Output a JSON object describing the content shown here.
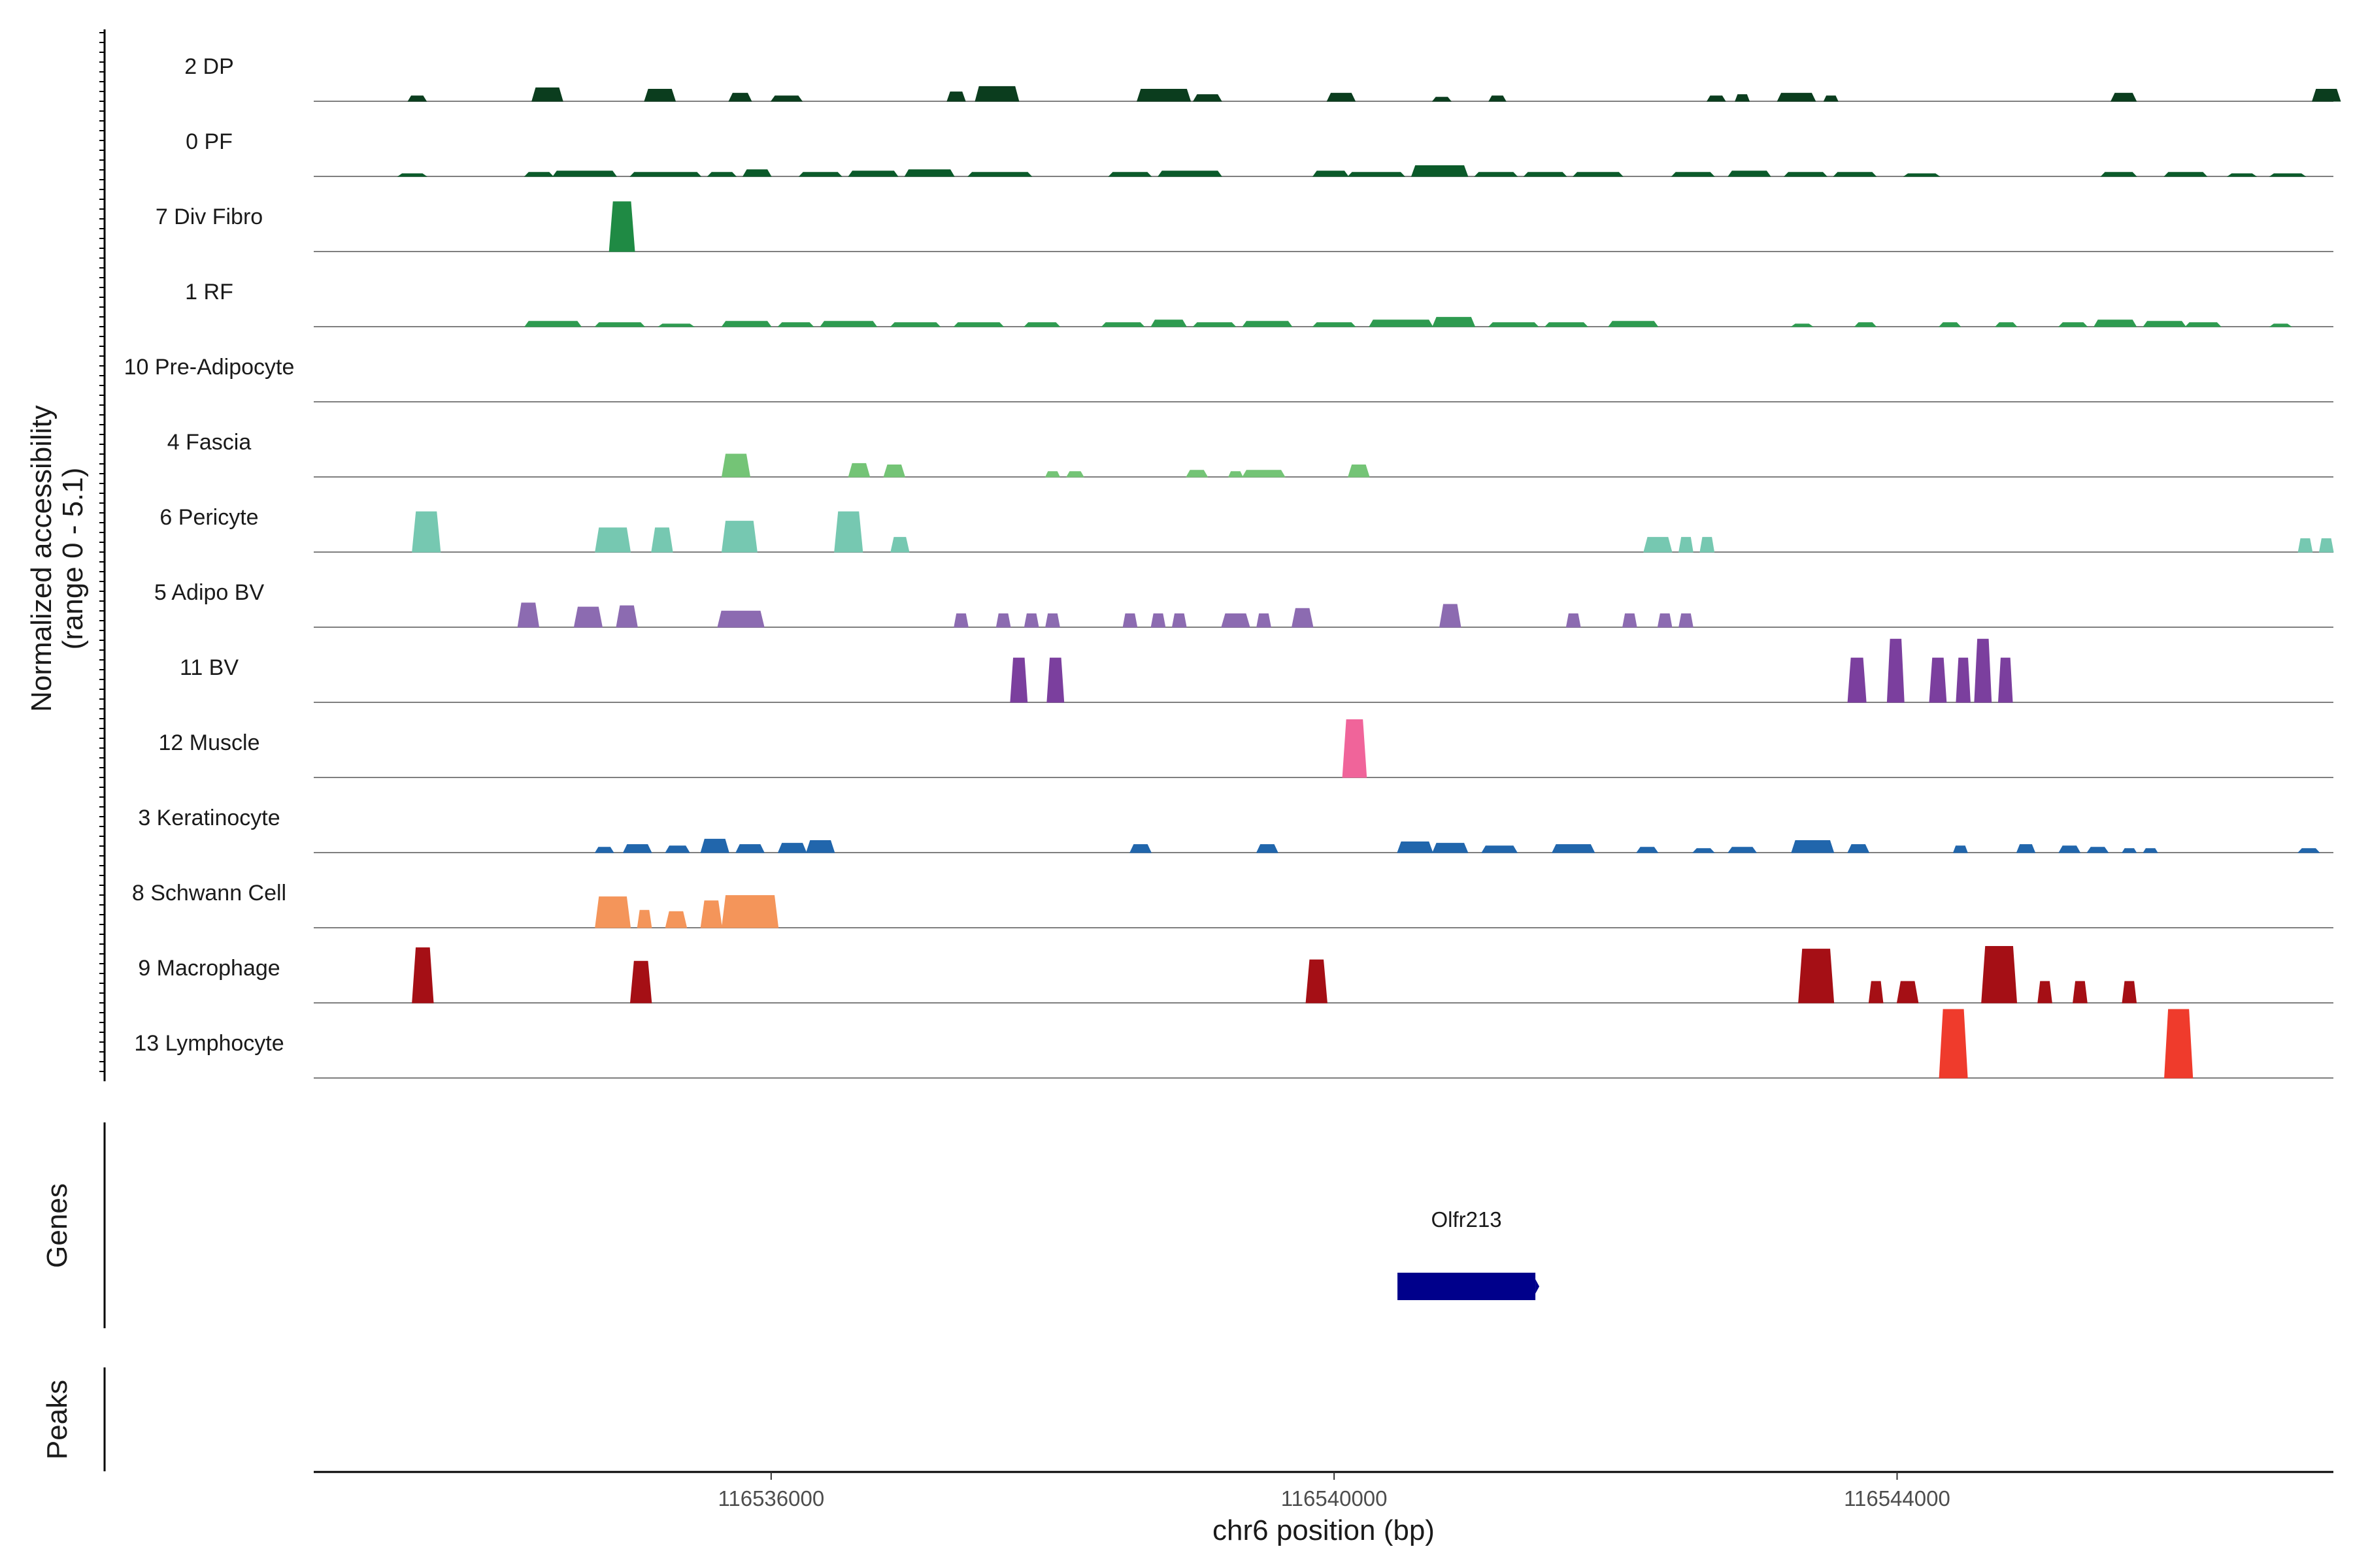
{
  "chart_data": {
    "type": "area",
    "title": "",
    "chromosome": "chr6",
    "xlabel": "chr6 position (bp)",
    "ylabel_line1": "Normalized accessibility",
    "ylabel_line2": "(range 0 - 5.1)",
    "y_range": [
      0,
      5.1
    ],
    "x_range": [
      116532750,
      116547100
    ],
    "x_ticks": [
      116536000,
      116540000,
      116544000
    ],
    "x_tick_labels": [
      "116536000",
      "116540000",
      "116544000"
    ],
    "genes_label": "Genes",
    "peaks_label": "Peaks",
    "genes": [
      {
        "name": "Olfr213",
        "start": 116540450,
        "end": 116541430,
        "strand": "+",
        "color": "#00008b"
      }
    ],
    "tracks": [
      {
        "label": "2 DP",
        "color": "#0b3d1e",
        "peaks": [
          [
            116533420,
            116533550,
            0.4
          ],
          [
            116534300,
            116534520,
            1.0
          ],
          [
            116535100,
            116535320,
            0.9
          ],
          [
            116535700,
            116535860,
            0.6
          ],
          [
            116536000,
            116536220,
            0.4
          ],
          [
            116537250,
            116537380,
            0.7
          ],
          [
            116537450,
            116537760,
            1.1
          ],
          [
            116538600,
            116538980,
            0.9
          ],
          [
            116539000,
            116539200,
            0.5
          ],
          [
            116539950,
            116540150,
            0.6
          ],
          [
            116540700,
            116540830,
            0.3
          ],
          [
            116541100,
            116541220,
            0.4
          ],
          [
            116542650,
            116542780,
            0.4
          ],
          [
            116542850,
            116542950,
            0.5
          ],
          [
            116543150,
            116543420,
            0.6
          ],
          [
            116543480,
            116543580,
            0.4
          ],
          [
            116545520,
            116545700,
            0.6
          ],
          [
            116546950,
            116547150,
            0.9
          ]
        ]
      },
      {
        "label": "0 PF",
        "color": "#0b5a2a",
        "peaks": [
          [
            116533350,
            116533550,
            0.2
          ],
          [
            116534250,
            116534450,
            0.3
          ],
          [
            116534450,
            116534900,
            0.4
          ],
          [
            116535000,
            116535500,
            0.3
          ],
          [
            116535550,
            116535750,
            0.3
          ],
          [
            116535800,
            116536000,
            0.5
          ],
          [
            116536200,
            116536500,
            0.3
          ],
          [
            116536550,
            116536900,
            0.4
          ],
          [
            116536950,
            116537300,
            0.5
          ],
          [
            116537400,
            116537850,
            0.3
          ],
          [
            116538400,
            116538700,
            0.3
          ],
          [
            116538750,
            116539200,
            0.4
          ],
          [
            116539850,
            116540100,
            0.4
          ],
          [
            116540100,
            116540500,
            0.3
          ],
          [
            116540550,
            116540950,
            0.8
          ],
          [
            116541000,
            116541300,
            0.3
          ],
          [
            116541350,
            116541650,
            0.3
          ],
          [
            116541700,
            116542050,
            0.3
          ],
          [
            116542400,
            116542700,
            0.3
          ],
          [
            116542800,
            116543100,
            0.4
          ],
          [
            116543200,
            116543500,
            0.3
          ],
          [
            116543550,
            116543850,
            0.3
          ],
          [
            116544050,
            116544300,
            0.2
          ],
          [
            116545450,
            116545700,
            0.3
          ],
          [
            116545900,
            116546200,
            0.3
          ],
          [
            116546350,
            116546550,
            0.2
          ],
          [
            116546650,
            116546900,
            0.2
          ]
        ]
      },
      {
        "label": "7 Div Fibro",
        "color": "#1f8a44",
        "peaks": [
          [
            116534850,
            116535030,
            3.7
          ]
        ]
      },
      {
        "label": "1 RF",
        "color": "#2e9b50",
        "peaks": [
          [
            116534250,
            116534650,
            0.4
          ],
          [
            116534750,
            116535100,
            0.3
          ],
          [
            116535200,
            116535450,
            0.2
          ],
          [
            116535650,
            116536000,
            0.4
          ],
          [
            116536050,
            116536300,
            0.3
          ],
          [
            116536350,
            116536750,
            0.4
          ],
          [
            116536850,
            116537200,
            0.3
          ],
          [
            116537300,
            116537650,
            0.3
          ],
          [
            116537800,
            116538050,
            0.3
          ],
          [
            116538350,
            116538650,
            0.3
          ],
          [
            116538700,
            116538950,
            0.5
          ],
          [
            116539000,
            116539300,
            0.3
          ],
          [
            116539350,
            116539700,
            0.4
          ],
          [
            116539850,
            116540150,
            0.3
          ],
          [
            116540250,
            116540700,
            0.5
          ],
          [
            116540700,
            116541000,
            0.7
          ],
          [
            116541100,
            116541450,
            0.3
          ],
          [
            116541500,
            116541800,
            0.3
          ],
          [
            116541950,
            116542300,
            0.4
          ],
          [
            116543250,
            116543400,
            0.2
          ],
          [
            116543700,
            116543850,
            0.3
          ],
          [
            116544300,
            116544450,
            0.3
          ],
          [
            116544700,
            116544850,
            0.3
          ],
          [
            116545150,
            116545350,
            0.3
          ],
          [
            116545400,
            116545700,
            0.5
          ],
          [
            116545750,
            116546050,
            0.4
          ],
          [
            116546050,
            116546300,
            0.3
          ],
          [
            116546650,
            116546800,
            0.2
          ]
        ]
      },
      {
        "label": "10 Pre-Adipocyte",
        "color": "#55b96b",
        "peaks": []
      },
      {
        "label": "4 Fascia",
        "color": "#74c476",
        "peaks": [
          [
            116535650,
            116535850,
            1.7
          ],
          [
            116536550,
            116536700,
            1.0
          ],
          [
            116536800,
            116536950,
            0.9
          ],
          [
            116537950,
            116538050,
            0.4
          ],
          [
            116538100,
            116538220,
            0.4
          ],
          [
            116538950,
            116539100,
            0.5
          ],
          [
            116539250,
            116539350,
            0.4
          ],
          [
            116539350,
            116539650,
            0.5
          ],
          [
            116540100,
            116540250,
            0.9
          ]
        ]
      },
      {
        "label": "6 Pericyte",
        "color": "#76c8b1",
        "peaks": [
          [
            116533450,
            116533650,
            3.0
          ],
          [
            116534750,
            116535000,
            1.8
          ],
          [
            116535150,
            116535300,
            1.8
          ],
          [
            116535650,
            116535900,
            2.3
          ],
          [
            116536450,
            116536650,
            3.0
          ],
          [
            116536850,
            116536980,
            1.1
          ],
          [
            116542200,
            116542400,
            1.1
          ],
          [
            116542450,
            116542550,
            1.1
          ],
          [
            116542600,
            116542700,
            1.1
          ],
          [
            116546850,
            116546950,
            1.0
          ],
          [
            116547000,
            116547100,
            1.0
          ]
        ]
      },
      {
        "label": "5 Adipo BV",
        "color": "#8c6bb1",
        "peaks": [
          [
            116534200,
            116534350,
            1.8
          ],
          [
            116534600,
            116534800,
            1.5
          ],
          [
            116534900,
            116535050,
            1.6
          ],
          [
            116535620,
            116535950,
            1.2
          ],
          [
            116537300,
            116537400,
            1.0
          ],
          [
            116537600,
            116537700,
            1.0
          ],
          [
            116537800,
            116537900,
            1.0
          ],
          [
            116537950,
            116538050,
            1.0
          ],
          [
            116538500,
            116538600,
            1.0
          ],
          [
            116538700,
            116538800,
            1.0
          ],
          [
            116538850,
            116538950,
            1.0
          ],
          [
            116539200,
            116539400,
            1.0
          ],
          [
            116539450,
            116539550,
            1.0
          ],
          [
            116539700,
            116539850,
            1.4
          ],
          [
            116540750,
            116540900,
            1.7
          ],
          [
            116541650,
            116541750,
            1.0
          ],
          [
            116542050,
            116542150,
            1.0
          ],
          [
            116542300,
            116542400,
            1.0
          ],
          [
            116542450,
            116542550,
            1.0
          ]
        ]
      },
      {
        "label": "11 BV",
        "color": "#7b3f9e",
        "peaks": [
          [
            116537700,
            116537820,
            3.3
          ],
          [
            116537960,
            116538080,
            3.3
          ],
          [
            116543650,
            116543780,
            3.3
          ],
          [
            116543930,
            116544050,
            4.7
          ],
          [
            116544230,
            116544350,
            3.3
          ],
          [
            116544420,
            116544520,
            3.3
          ],
          [
            116544550,
            116544670,
            4.7
          ],
          [
            116544720,
            116544820,
            3.3
          ]
        ]
      },
      {
        "label": "12 Muscle",
        "color": "#f0649a",
        "peaks": [
          [
            116540060,
            116540230,
            4.3
          ]
        ]
      },
      {
        "label": "3 Keratinocyte",
        "color": "#2166ac",
        "peaks": [
          [
            116534750,
            116534880,
            0.4
          ],
          [
            116534950,
            116535150,
            0.6
          ],
          [
            116535250,
            116535420,
            0.5
          ],
          [
            116535500,
            116535700,
            1.0
          ],
          [
            116535750,
            116535950,
            0.6
          ],
          [
            116536050,
            116536250,
            0.7
          ],
          [
            116536250,
            116536450,
            0.9
          ],
          [
            116538550,
            116538700,
            0.6
          ],
          [
            116539450,
            116539600,
            0.6
          ],
          [
            116540450,
            116540700,
            0.8
          ],
          [
            116540700,
            116540950,
            0.7
          ],
          [
            116541050,
            116541300,
            0.5
          ],
          [
            116541550,
            116541850,
            0.6
          ],
          [
            116542150,
            116542300,
            0.4
          ],
          [
            116542550,
            116542700,
            0.3
          ],
          [
            116542800,
            116543000,
            0.4
          ],
          [
            116543250,
            116543550,
            0.9
          ],
          [
            116543650,
            116543800,
            0.6
          ],
          [
            116544400,
            116544500,
            0.5
          ],
          [
            116544850,
            116544980,
            0.6
          ],
          [
            116545150,
            116545300,
            0.5
          ],
          [
            116545350,
            116545500,
            0.4
          ],
          [
            116545600,
            116545700,
            0.3
          ],
          [
            116545750,
            116545850,
            0.3
          ],
          [
            116546850,
            116547000,
            0.3
          ]
        ]
      },
      {
        "label": "8 Schwann Cell",
        "color": "#f4955a",
        "peaks": [
          [
            116534750,
            116535000,
            2.3
          ],
          [
            116535050,
            116535150,
            1.3
          ],
          [
            116535250,
            116535400,
            1.2
          ],
          [
            116535500,
            116535650,
            2.0
          ],
          [
            116535650,
            116536050,
            2.4
          ]
        ]
      },
      {
        "label": "9 Macrophage",
        "color": "#a50f15",
        "peaks": [
          [
            116533450,
            116533600,
            4.1
          ],
          [
            116535000,
            116535150,
            3.1
          ],
          [
            116539800,
            116539950,
            3.2
          ],
          [
            116543300,
            116543550,
            4.0
          ],
          [
            116543800,
            116543900,
            1.6
          ],
          [
            116544000,
            116544150,
            1.6
          ],
          [
            116544600,
            116544850,
            4.2
          ],
          [
            116545000,
            116545100,
            1.6
          ],
          [
            116545250,
            116545350,
            1.6
          ],
          [
            116545600,
            116545700,
            1.6
          ]
        ]
      },
      {
        "label": "13 Lymphocyte",
        "color": "#ef3b2c",
        "peaks": [
          [
            116544300,
            116544500,
            5.1
          ],
          [
            116545900,
            116546100,
            5.1
          ]
        ]
      }
    ]
  }
}
